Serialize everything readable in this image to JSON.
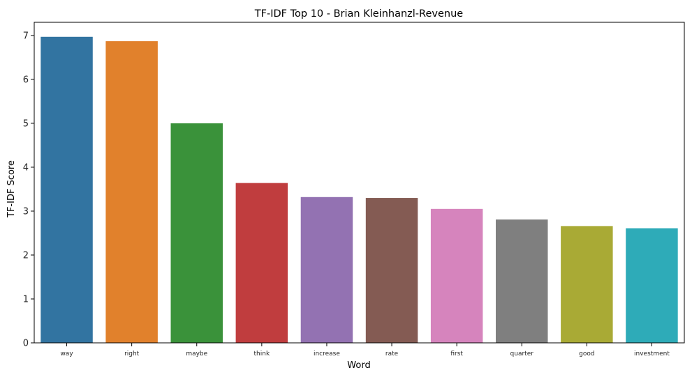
{
  "chart_data": {
    "type": "bar",
    "title": "TF-IDF Top 10 - Brian Kleinhanzl-Revenue",
    "xlabel": "Word",
    "ylabel": "TF-IDF Score",
    "categories": [
      "way",
      "right",
      "maybe",
      "think",
      "increase",
      "rate",
      "first",
      "quarter",
      "good",
      "investment"
    ],
    "values": [
      6.97,
      6.87,
      5.0,
      3.64,
      3.32,
      3.3,
      3.05,
      2.81,
      2.66,
      2.61
    ],
    "colors": [
      "#3274a1",
      "#e1812c",
      "#3a923a",
      "#c03d3e",
      "#9372b2",
      "#845b53",
      "#d684bd",
      "#7f7f7f",
      "#a9aa35",
      "#2eabb8"
    ],
    "ylim": [
      0,
      7.3
    ],
    "yticks": [
      0,
      1,
      2,
      3,
      4,
      5,
      6,
      7
    ],
    "grid": false
  }
}
